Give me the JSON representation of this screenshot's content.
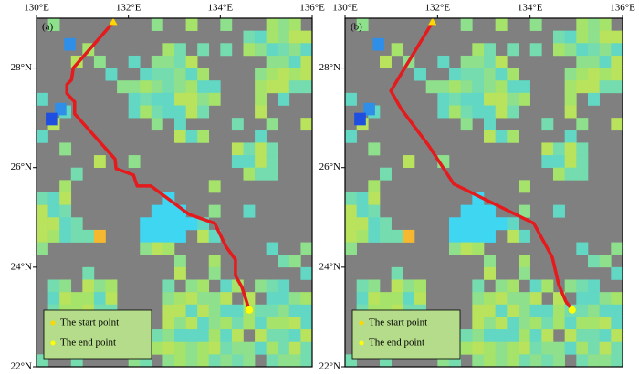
{
  "chart_data": [
    {
      "type": "route",
      "panel_label": "(a)",
      "xlim": [
        130,
        136
      ],
      "ylim": [
        22,
        29
      ],
      "xticks": [
        {
          "value": 130,
          "label": "130°E"
        },
        {
          "value": 132,
          "label": "132°E"
        },
        {
          "value": 134,
          "label": "134°E"
        },
        {
          "value": 136,
          "label": "136°E"
        }
      ],
      "yticks": [
        {
          "value": 22,
          "label": "22°N"
        },
        {
          "value": 24,
          "label": "24°N"
        },
        {
          "value": 26,
          "label": "26°N"
        },
        {
          "value": 28,
          "label": "28°N"
        }
      ],
      "series": [
        {
          "color": "#e41a1c",
          "x": [
            131.67,
            130.8,
            130.76,
            130.66,
            130.66,
            130.83,
            130.83,
            131.71,
            131.73,
            132.11,
            132.19,
            132.49,
            133.32,
            133.88,
            134.12,
            134.33,
            134.33,
            134.47,
            134.63
          ],
          "values": [
            28.92,
            28.0,
            27.76,
            27.67,
            27.49,
            27.32,
            27.08,
            26.17,
            25.98,
            25.85,
            25.63,
            25.63,
            25.06,
            24.88,
            24.42,
            24.15,
            23.83,
            23.6,
            23.14
          ]
        }
      ],
      "legend": [
        {
          "name": "The start point",
          "color": "#ffd700"
        },
        {
          "name": "The end point",
          "color": "#ffff00"
        }
      ]
    },
    {
      "type": "route",
      "panel_label": "(b)",
      "xlim": [
        130,
        136
      ],
      "ylim": [
        22,
        29
      ],
      "xticks": [
        {
          "value": 130,
          "label": "130°E"
        },
        {
          "value": 132,
          "label": "132°E"
        },
        {
          "value": 134,
          "label": "134°E"
        },
        {
          "value": 136,
          "label": "136°E"
        }
      ],
      "yticks": [
        {
          "value": 22,
          "label": "22°N"
        },
        {
          "value": 24,
          "label": "24°N"
        },
        {
          "value": 26,
          "label": "26°N"
        },
        {
          "value": 28,
          "label": "28°N"
        }
      ],
      "series": [
        {
          "color": "#e41a1c",
          "x": [
            131.89,
            130.99,
            131.22,
            131.81,
            132.35,
            134.08,
            134.48,
            134.62,
            134.77,
            134.91
          ],
          "values": [
            28.92,
            27.54,
            27.17,
            26.44,
            25.67,
            24.88,
            24.2,
            23.65,
            23.32,
            23.14
          ]
        }
      ],
      "legend": [
        {
          "name": "The start point",
          "color": "#ffd700"
        },
        {
          "name": "The end point",
          "color": "#ffff00"
        }
      ]
    }
  ]
}
